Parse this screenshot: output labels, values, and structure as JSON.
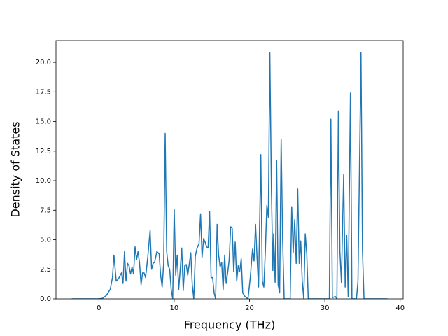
{
  "chart_data": {
    "type": "line",
    "xlabel": "Frequency (THz)",
    "ylabel": "Density of States",
    "color": "#1f77b4",
    "x": [
      -3.6,
      0,
      0.5,
      1,
      1.5,
      1.8,
      2.0,
      2.3,
      2.6,
      3.0,
      3.2,
      3.4,
      3.6,
      3.8,
      4.0,
      4.2,
      4.4,
      4.6,
      4.8,
      5.0,
      5.2,
      5.4,
      5.6,
      5.8,
      6.0,
      6.2,
      6.5,
      6.8,
      7.0,
      7.2,
      7.4,
      7.7,
      8.0,
      8.2,
      8.4,
      8.6,
      8.8,
      9.0,
      9.2,
      9.4,
      9.6,
      9.8,
      10.0,
      10.2,
      10.4,
      10.6,
      10.8,
      11.0,
      11.2,
      11.4,
      11.6,
      11.8,
      12.2,
      12.4,
      12.6,
      12.8,
      13.0,
      13.3,
      13.5,
      13.7,
      13.9,
      14.1,
      14.3,
      14.5,
      14.7,
      14.9,
      15.1,
      15.3,
      15.5,
      15.7,
      15.9,
      16.1,
      16.3,
      16.5,
      16.7,
      16.9,
      17.1,
      17.3,
      17.5,
      17.7,
      17.9,
      18.1,
      18.3,
      18.5,
      18.7,
      18.9,
      19.1,
      19.4,
      19.8,
      20.1,
      20.4,
      20.6,
      20.8,
      21.0,
      21.2,
      21.5,
      21.7,
      21.9,
      22.1,
      22.3,
      22.5,
      22.7,
      22.9,
      23.1,
      23.2,
      23.4,
      23.6,
      23.8,
      24.0,
      24.2,
      24.4,
      24.6,
      25.4,
      25.6,
      25.8,
      26.0,
      26.2,
      26.4,
      26.6,
      26.8,
      27.0,
      27.2,
      27.4,
      27.6,
      27.8,
      30.6,
      30.8,
      31.0,
      31.4,
      31.6,
      31.8,
      32.0,
      32.2,
      32.5,
      32.7,
      32.9,
      33.1,
      33.4,
      33.6,
      34.2,
      34.4,
      34.8,
      35.0,
      35.2,
      38.3
    ],
    "y": [
      0,
      0,
      0.05,
      0.3,
      0.8,
      1.8,
      3.7,
      1.5,
      1.7,
      2.2,
      1.3,
      4.0,
      1.5,
      3.0,
      2.8,
      2.1,
      2.7,
      2.1,
      4.4,
      3.3,
      4.0,
      3.0,
      1.2,
      2.2,
      2.2,
      1.8,
      3.6,
      5.8,
      2.5,
      3.0,
      3.1,
      4.0,
      3.8,
      2.0,
      1.0,
      3.0,
      14.0,
      4.0,
      2.8,
      2.5,
      0.8,
      0,
      7.6,
      2.0,
      3.7,
      0.8,
      2.5,
      4.3,
      0.7,
      2.8,
      2.9,
      2.0,
      3.9,
      1.2,
      0,
      3.6,
      4.2,
      4.7,
      7.2,
      3.5,
      5.1,
      4.8,
      4.4,
      4.3,
      7.4,
      1.8,
      1.8,
      0.5,
      0,
      6.3,
      3.7,
      2.7,
      3.1,
      0.8,
      3.7,
      1.3,
      2.2,
      3.3,
      6.1,
      6.0,
      2.3,
      4.8,
      1.5,
      2.8,
      2.3,
      3.4,
      0.5,
      0.2,
      0,
      1.8,
      4.2,
      3.2,
      6.3,
      3.5,
      1.0,
      12.2,
      1.5,
      1.0,
      4.0,
      7.9,
      6.9,
      20.8,
      9.5,
      2.4,
      5.5,
      1.4,
      11.7,
      1.2,
      0.5,
      13.5,
      5.0,
      0,
      0,
      7.8,
      3.9,
      6.7,
      3.0,
      9.3,
      3.0,
      4.9,
      1.5,
      0,
      5.5,
      3.8,
      0,
      0,
      15.2,
      0.1,
      0.2,
      0,
      15.9,
      4.0,
      1.4,
      10.5,
      1.0,
      5.4,
      0.2,
      17.4,
      0,
      0,
      1.5,
      20.8,
      4.0,
      0,
      0
    ],
    "xlim": [
      -5.7,
      40.4
    ],
    "ylim": [
      0,
      21.84
    ],
    "xticks": [
      0,
      10,
      20,
      30,
      40
    ],
    "yticks": [
      {
        "value": 0,
        "label": "0.0"
      },
      2.5,
      {
        "value": 5,
        "label": "5.0"
      },
      7.5,
      {
        "value": 10,
        "label": "10.0"
      },
      12.5,
      {
        "value": 15,
        "label": "15.0"
      },
      17.5,
      {
        "value": 20,
        "label": "20.0"
      }
    ]
  }
}
